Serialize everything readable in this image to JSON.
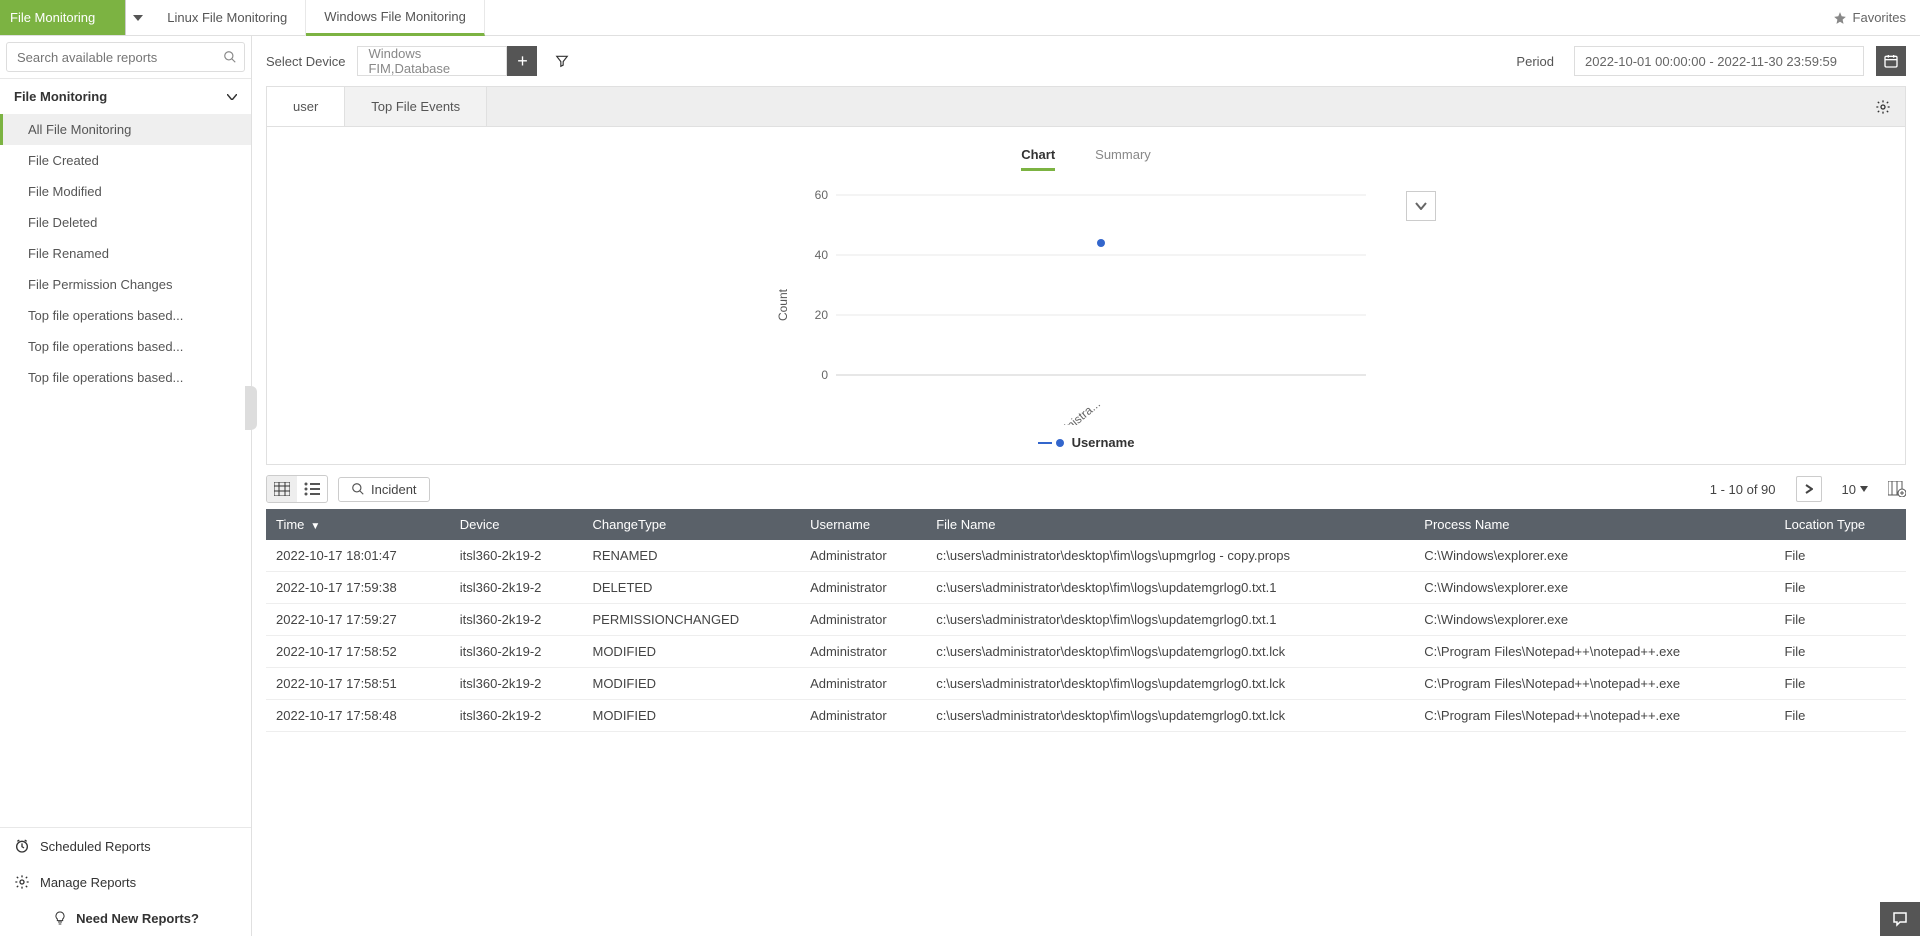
{
  "topnav": {
    "dropdown_label": "File Monitoring",
    "tabs": [
      {
        "label": "Linux File Monitoring",
        "active": false
      },
      {
        "label": "Windows File Monitoring",
        "active": true
      }
    ],
    "favorites_label": "Favorites"
  },
  "sidebar": {
    "search_placeholder": "Search available reports",
    "section_header": "File Monitoring",
    "items": [
      {
        "label": "All File Monitoring",
        "active": true
      },
      {
        "label": "File Created",
        "active": false
      },
      {
        "label": "File Modified",
        "active": false
      },
      {
        "label": "File Deleted",
        "active": false
      },
      {
        "label": "File Renamed",
        "active": false
      },
      {
        "label": "File Permission Changes",
        "active": false
      },
      {
        "label": "Top file operations based...",
        "active": false
      },
      {
        "label": "Top file operations based...",
        "active": false
      },
      {
        "label": "Top file operations based...",
        "active": false
      }
    ],
    "footer": {
      "scheduled_reports": "Scheduled Reports",
      "manage_reports": "Manage Reports",
      "need_new_reports": "Need New Reports?"
    }
  },
  "toolbar": {
    "select_device_label": "Select Device",
    "device_value": "Windows FIM,Database",
    "period_label": "Period",
    "period_value": "2022-10-01 00:00:00 - 2022-11-30 23:59:59"
  },
  "subtabs": [
    {
      "label": "user",
      "active": true
    },
    {
      "label": "Top File Events",
      "active": false
    }
  ],
  "chart": {
    "view_tabs": [
      {
        "label": "Chart",
        "active": true
      },
      {
        "label": "Summary",
        "active": false
      }
    ],
    "type": "scatter-line",
    "y_axis_title": "Count",
    "y_ticks": [
      0,
      20,
      40,
      60
    ],
    "ylim": [
      0,
      60
    ],
    "x_label": "administra...",
    "data_point": {
      "x": 0,
      "y": 44
    },
    "point_color": "#3366cc",
    "grid_color": "#e8e8e8",
    "axis_color": "#cfcfcf",
    "text_color": "#666666",
    "legend_label": "Username",
    "legend_color": "#3366cc"
  },
  "table_toolbar": {
    "incident_label": "Incident",
    "pagination_text": "1 - 10 of 90",
    "page_size": "10"
  },
  "table": {
    "columns": [
      {
        "label": "Time",
        "sorted": true
      },
      {
        "label": "Device"
      },
      {
        "label": "ChangeType"
      },
      {
        "label": "Username"
      },
      {
        "label": "File Name"
      },
      {
        "label": "Process Name"
      },
      {
        "label": "Location Type"
      }
    ],
    "rows": [
      [
        "2022-10-17 18:01:47",
        "itsl360-2k19-2",
        "RENAMED",
        "Administrator",
        "c:\\users\\administrator\\desktop\\fim\\logs\\upmgrlog - copy.props",
        "C:\\Windows\\explorer.exe",
        "File"
      ],
      [
        "2022-10-17 17:59:38",
        "itsl360-2k19-2",
        "DELETED",
        "Administrator",
        "c:\\users\\administrator\\desktop\\fim\\logs\\updatemgrlog0.txt.1",
        "C:\\Windows\\explorer.exe",
        "File"
      ],
      [
        "2022-10-17 17:59:27",
        "itsl360-2k19-2",
        "PERMISSIONCHANGED",
        "Administrator",
        "c:\\users\\administrator\\desktop\\fim\\logs\\updatemgrlog0.txt.1",
        "C:\\Windows\\explorer.exe",
        "File"
      ],
      [
        "2022-10-17 17:58:52",
        "itsl360-2k19-2",
        "MODIFIED",
        "Administrator",
        "c:\\users\\administrator\\desktop\\fim\\logs\\updatemgrlog0.txt.lck",
        "C:\\Program Files\\Notepad++\\notepad++.exe",
        "File"
      ],
      [
        "2022-10-17 17:58:51",
        "itsl360-2k19-2",
        "MODIFIED",
        "Administrator",
        "c:\\users\\administrator\\desktop\\fim\\logs\\updatemgrlog0.txt.lck",
        "C:\\Program Files\\Notepad++\\notepad++.exe",
        "File"
      ],
      [
        "2022-10-17 17:58:48",
        "itsl360-2k19-2",
        "MODIFIED",
        "Administrator",
        "c:\\users\\administrator\\desktop\\fim\\logs\\updatemgrlog0.txt.lck",
        "C:\\Program Files\\Notepad++\\notepad++.exe",
        "File"
      ]
    ]
  }
}
